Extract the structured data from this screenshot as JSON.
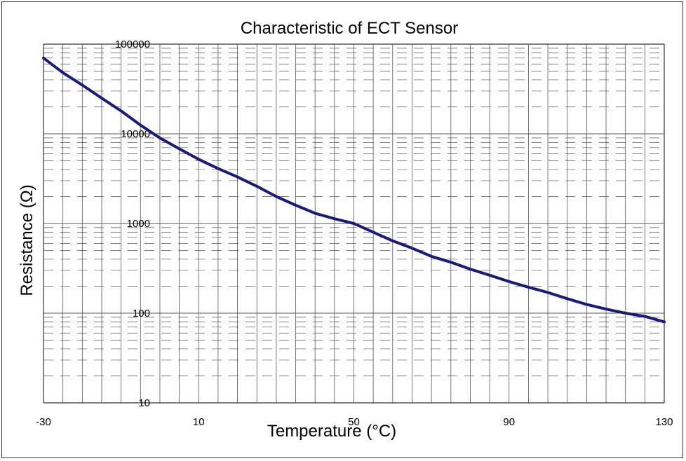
{
  "chart_data": {
    "type": "line",
    "title": "Characteristic of ECT Sensor",
    "xlabel": "Temperature (°C)",
    "ylabel": "Resistance (Ω)",
    "xlim": [
      -30,
      130
    ],
    "ylim": [
      10,
      100000
    ],
    "y_scale": "log",
    "x_ticks": [
      -30,
      10,
      50,
      90,
      130
    ],
    "x_tick_labels": [
      "-30",
      "10",
      "50",
      "90",
      "130"
    ],
    "y_ticks": [
      100000,
      10000,
      1000,
      100,
      10
    ],
    "y_tick_labels": [
      "100000",
      "10000",
      "1000",
      "100",
      "10"
    ],
    "grid": true,
    "line_color": "#1a1a7a",
    "series": [
      {
        "x": [
          -30,
          -25,
          -20,
          -15,
          -10,
          -5,
          0,
          5,
          10,
          15,
          20,
          25,
          30,
          35,
          40,
          45,
          50,
          55,
          60,
          65,
          70,
          75,
          80,
          85,
          90,
          95,
          100,
          105,
          110,
          115,
          120,
          125,
          130
        ],
        "values": [
          70000,
          48000,
          35000,
          25000,
          18000,
          12500,
          9000,
          6800,
          5200,
          4100,
          3300,
          2600,
          2000,
          1600,
          1300,
          1130,
          1000,
          800,
          640,
          530,
          430,
          370,
          310,
          265,
          225,
          195,
          170,
          145,
          125,
          111,
          100,
          92,
          80
        ]
      }
    ]
  }
}
